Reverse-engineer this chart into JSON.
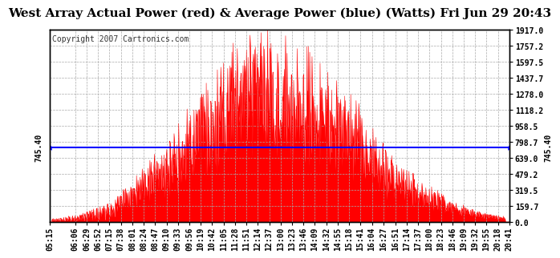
{
  "title": "West Array Actual Power (red) & Average Power (blue) (Watts) Fri Jun 29 20:43",
  "copyright": "Copyright 2007 Cartronics.com",
  "average_power": 745.4,
  "ymax": 1917.0,
  "yticks": [
    0.0,
    159.7,
    319.5,
    479.2,
    639.0,
    798.7,
    958.5,
    1118.2,
    1278.0,
    1437.7,
    1597.5,
    1757.2,
    1917.0
  ],
  "ytick_labels": [
    "0.0",
    "159.7",
    "319.5",
    "479.2",
    "639.0",
    "798.7",
    "958.5",
    "1118.2",
    "1278.0",
    "1437.7",
    "1597.5",
    "1757.2",
    "1917.0"
  ],
  "background_color": "#ffffff",
  "fill_color": "#ff0000",
  "line_color": "#0000ff",
  "grid_color": "#aaaaaa",
  "title_fontsize": 11,
  "tick_fontsize": 7,
  "copyright_fontsize": 7,
  "avg_label_fontsize": 7,
  "tick_labels": [
    "05:15",
    "06:06",
    "06:29",
    "06:52",
    "07:15",
    "07:38",
    "08:01",
    "08:24",
    "08:47",
    "09:10",
    "09:33",
    "09:56",
    "10:19",
    "10:42",
    "11:05",
    "11:28",
    "11:51",
    "12:14",
    "12:37",
    "13:00",
    "13:23",
    "13:46",
    "14:09",
    "14:32",
    "14:55",
    "15:18",
    "15:41",
    "16:04",
    "16:27",
    "16:51",
    "17:14",
    "17:37",
    "18:00",
    "18:23",
    "18:46",
    "19:09",
    "19:32",
    "19:55",
    "20:18",
    "20:41"
  ],
  "t_peak": 12.5,
  "sigma": 3.0,
  "seed": 42
}
